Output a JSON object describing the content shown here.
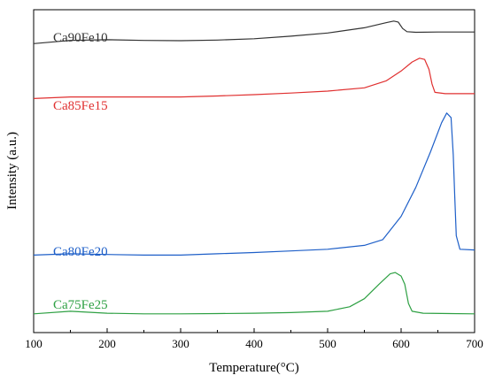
{
  "chart_data": {
    "type": "line",
    "title": "",
    "xlabel": "Temperature(°C)",
    "ylabel": "Intensity (a.u.)",
    "xlim": [
      100,
      700
    ],
    "xticks": [
      100,
      200,
      300,
      400,
      500,
      600,
      700
    ],
    "yticks_shown": false,
    "grid": false,
    "legend": "inline labels",
    "series": [
      {
        "name": "Ca90Fe10",
        "color": "#333333",
        "points": [
          [
            100,
            0.895
          ],
          [
            150,
            0.905
          ],
          [
            200,
            0.907
          ],
          [
            250,
            0.905
          ],
          [
            300,
            0.904
          ],
          [
            350,
            0.906
          ],
          [
            400,
            0.91
          ],
          [
            450,
            0.918
          ],
          [
            500,
            0.928
          ],
          [
            550,
            0.944
          ],
          [
            580,
            0.96
          ],
          [
            590,
            0.965
          ],
          [
            596,
            0.962
          ],
          [
            602,
            0.942
          ],
          [
            608,
            0.932
          ],
          [
            620,
            0.93
          ],
          [
            650,
            0.931
          ],
          [
            700,
            0.931
          ]
        ]
      },
      {
        "name": "Ca85Fe15",
        "color": "#e03030",
        "points": [
          [
            100,
            0.725
          ],
          [
            150,
            0.73
          ],
          [
            200,
            0.73
          ],
          [
            250,
            0.73
          ],
          [
            300,
            0.73
          ],
          [
            350,
            0.733
          ],
          [
            400,
            0.737
          ],
          [
            450,
            0.742
          ],
          [
            500,
            0.748
          ],
          [
            550,
            0.758
          ],
          [
            580,
            0.78
          ],
          [
            600,
            0.81
          ],
          [
            615,
            0.838
          ],
          [
            625,
            0.85
          ],
          [
            632,
            0.846
          ],
          [
            638,
            0.815
          ],
          [
            642,
            0.77
          ],
          [
            646,
            0.744
          ],
          [
            660,
            0.74
          ],
          [
            700,
            0.74
          ]
        ]
      },
      {
        "name": "Ca80Fe20",
        "color": "#1e5fc8",
        "points": [
          [
            100,
            0.24
          ],
          [
            150,
            0.244
          ],
          [
            200,
            0.242
          ],
          [
            250,
            0.24
          ],
          [
            300,
            0.24
          ],
          [
            350,
            0.244
          ],
          [
            400,
            0.248
          ],
          [
            450,
            0.253
          ],
          [
            500,
            0.258
          ],
          [
            550,
            0.27
          ],
          [
            575,
            0.288
          ],
          [
            600,
            0.36
          ],
          [
            620,
            0.45
          ],
          [
            640,
            0.56
          ],
          [
            655,
            0.65
          ],
          [
            662,
            0.68
          ],
          [
            668,
            0.666
          ],
          [
            671,
            0.55
          ],
          [
            673,
            0.42
          ],
          [
            675,
            0.3
          ],
          [
            680,
            0.258
          ],
          [
            700,
            0.256
          ]
        ]
      },
      {
        "name": "Ca75Fe25",
        "color": "#2ea043",
        "points": [
          [
            100,
            0.058
          ],
          [
            150,
            0.066
          ],
          [
            200,
            0.06
          ],
          [
            250,
            0.058
          ],
          [
            300,
            0.058
          ],
          [
            350,
            0.059
          ],
          [
            400,
            0.06
          ],
          [
            450,
            0.062
          ],
          [
            500,
            0.066
          ],
          [
            530,
            0.08
          ],
          [
            550,
            0.105
          ],
          [
            570,
            0.15
          ],
          [
            585,
            0.182
          ],
          [
            592,
            0.186
          ],
          [
            600,
            0.175
          ],
          [
            605,
            0.15
          ],
          [
            610,
            0.09
          ],
          [
            615,
            0.066
          ],
          [
            630,
            0.06
          ],
          [
            700,
            0.058
          ]
        ]
      }
    ]
  }
}
